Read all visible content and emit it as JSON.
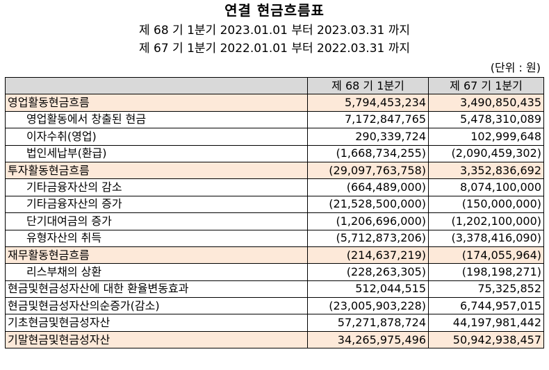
{
  "title": "연결 현금흐름표",
  "period_current": "제 68 기 1분기 2023.01.01 부터 2023.03.31 까지",
  "period_prior": "제 67 기 1분기 2022.01.01 부터 2022.03.31 까지",
  "unit": "(단위 : 원)",
  "colors": {
    "header_bg": "#d9d9d9",
    "section_bg": "#fde9d9"
  },
  "table": {
    "headers": [
      "",
      "제 68 기 1분기",
      "제 67 기 1분기"
    ],
    "rows": [
      {
        "label": "영업활동현금흐름",
        "current": "5,794,453,234",
        "prior": "3,490,850,435",
        "section": true,
        "indent": false
      },
      {
        "label": "영업활동에서 창출된 현금",
        "current": "7,172,847,765",
        "prior": "5,478,310,089",
        "section": false,
        "indent": true
      },
      {
        "label": "이자수취(영업)",
        "current": "290,339,724",
        "prior": "102,999,648",
        "section": false,
        "indent": true
      },
      {
        "label": "법인세납부(환급)",
        "current": "(1,668,734,255)",
        "prior": "(2,090,459,302)",
        "section": false,
        "indent": true
      },
      {
        "label": "투자활동현금흐름",
        "current": "(29,097,763,758)",
        "prior": "3,352,836,692",
        "section": true,
        "indent": false
      },
      {
        "label": "기타금융자산의 감소",
        "current": "(664,489,000)",
        "prior": "8,074,100,000",
        "section": false,
        "indent": true
      },
      {
        "label": "기타금융자산의 증가",
        "current": "(21,528,500,000)",
        "prior": "(150,000,000)",
        "section": false,
        "indent": true
      },
      {
        "label": "단기대여금의 증가",
        "current": "(1,206,696,000)",
        "prior": "(1,202,100,000)",
        "section": false,
        "indent": true
      },
      {
        "label": "유형자산의 취득",
        "current": "(5,712,873,206)",
        "prior": "(3,378,416,090)",
        "section": false,
        "indent": true
      },
      {
        "label": "재무활동현금흐름",
        "current": "(214,637,219)",
        "prior": "(174,055,964)",
        "section": true,
        "indent": false
      },
      {
        "label": "리스부채의 상환",
        "current": "(228,263,305)",
        "prior": "(198,198,271)",
        "section": false,
        "indent": true
      },
      {
        "label": "현금및현금성자산에 대한 환율변동효과",
        "current": "512,044,515",
        "prior": "75,325,852",
        "section": false,
        "indent": false
      },
      {
        "label": "현금및현금성자산의순증가(감소)",
        "current": "(23,005,903,228)",
        "prior": "6,744,957,015",
        "section": false,
        "indent": false
      },
      {
        "label": "기초현금및현금성자산",
        "current": "57,271,878,724",
        "prior": "44,197,981,442",
        "section": false,
        "indent": false
      },
      {
        "label": "기말현금및현금성자산",
        "current": "34,265,975,496",
        "prior": "50,942,938,457",
        "section": true,
        "indent": false
      }
    ]
  }
}
